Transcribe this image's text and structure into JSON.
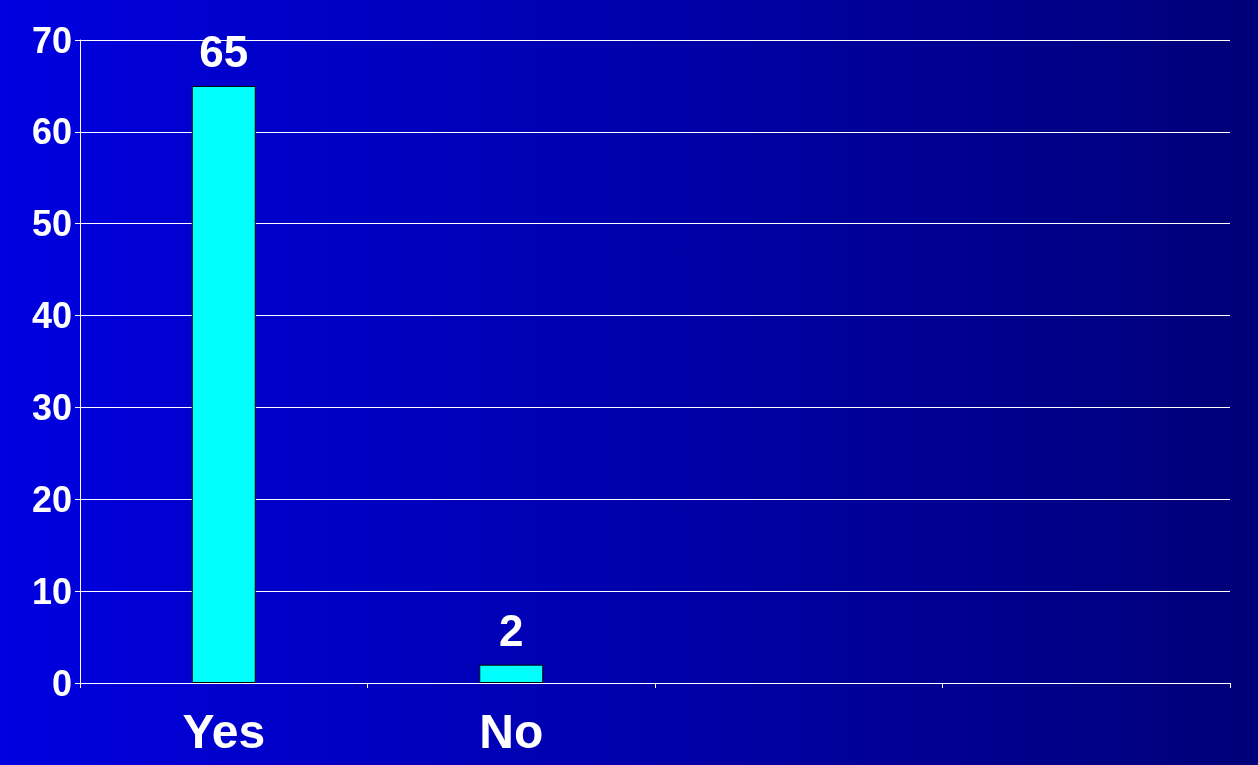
{
  "chart_data": {
    "type": "bar",
    "categories": [
      "Yes",
      "No",
      null,
      null
    ],
    "values": [
      65,
      2,
      null,
      null
    ],
    "color": "#00ffff",
    "ylim": [
      0,
      70
    ],
    "yticks": [
      0,
      10,
      20,
      30,
      40,
      50,
      60,
      70
    ],
    "grid": "y",
    "data_labels": true
  }
}
